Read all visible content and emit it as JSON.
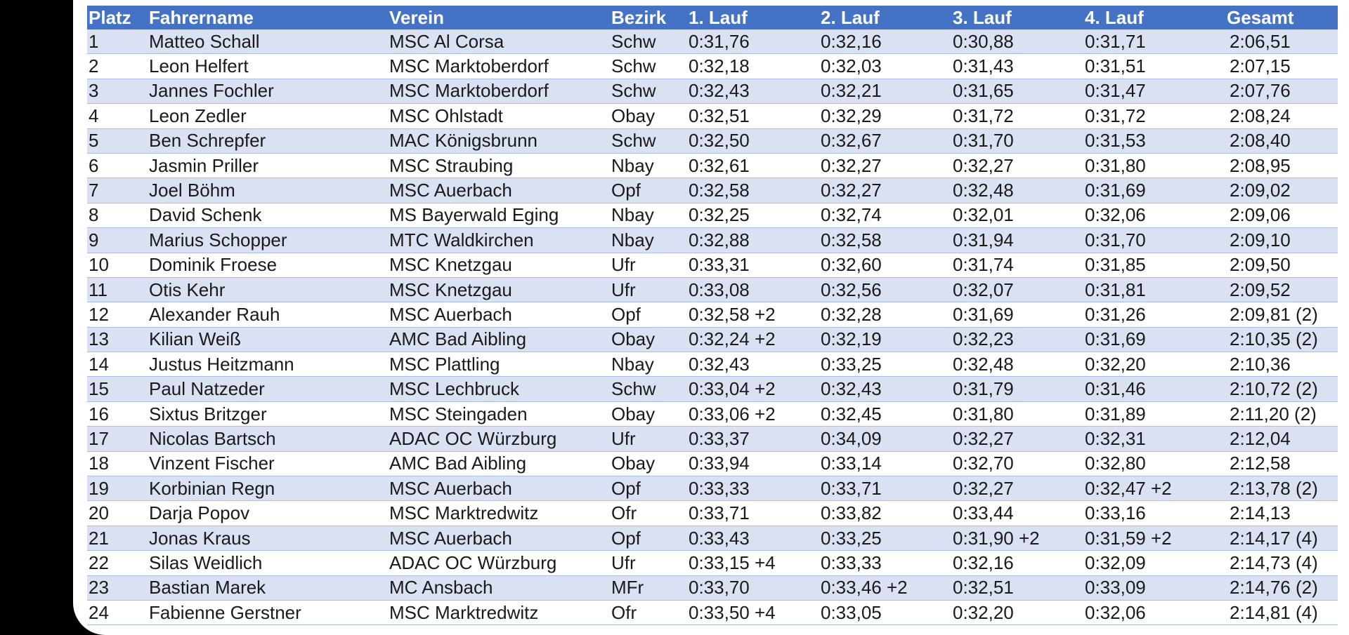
{
  "table": {
    "columns": [
      "Platz",
      "Fahrername",
      "Verein",
      "Bezirk",
      "1. Lauf",
      "2. Lauf",
      "3. Lauf",
      "4. Lauf",
      "Gesamt"
    ],
    "rows": [
      [
        "1",
        "Matteo Schall",
        "MSC Al Corsa",
        "Schw",
        "0:31,76",
        "0:32,16",
        "0:30,88",
        "0:31,71",
        "2:06,51"
      ],
      [
        "2",
        "Leon Helfert",
        "MSC Marktoberdorf",
        "Schw",
        "0:32,18",
        "0:32,03",
        "0:31,43",
        "0:31,51",
        "2:07,15"
      ],
      [
        "3",
        "Jannes Fochler",
        "MSC Marktoberdorf",
        "Schw",
        "0:32,43",
        "0:32,21",
        "0:31,65",
        "0:31,47",
        "2:07,76"
      ],
      [
        "4",
        "Leon Zedler",
        "MSC Ohlstadt",
        "Obay",
        "0:32,51",
        "0:32,29",
        "0:31,72",
        "0:31,72",
        "2:08,24"
      ],
      [
        "5",
        "Ben Schrepfer",
        "MAC Königsbrunn",
        "Schw",
        "0:32,50",
        "0:32,67",
        "0:31,70",
        "0:31,53",
        "2:08,40"
      ],
      [
        "6",
        "Jasmin Priller",
        "MSC Straubing",
        "Nbay",
        "0:32,61",
        "0:32,27",
        "0:32,27",
        "0:31,80",
        "2:08,95"
      ],
      [
        "7",
        "Joel Böhm",
        "MSC Auerbach",
        "Opf",
        "0:32,58",
        "0:32,27",
        "0:32,48",
        "0:31,69",
        "2:09,02"
      ],
      [
        "8",
        "David Schenk",
        "MS Bayerwald Eging",
        "Nbay",
        "0:32,25",
        "0:32,74",
        "0:32,01",
        "0:32,06",
        "2:09,06"
      ],
      [
        "9",
        "Marius Schopper",
        "MTC Waldkirchen",
        "Nbay",
        "0:32,88",
        "0:32,58",
        "0:31,94",
        "0:31,70",
        "2:09,10"
      ],
      [
        "10",
        "Dominik Froese",
        "MSC Knetzgau",
        "Ufr",
        "0:33,31",
        "0:32,60",
        "0:31,74",
        "0:31,85",
        "2:09,50"
      ],
      [
        "11",
        "Otis Kehr",
        "MSC Knetzgau",
        "Ufr",
        "0:33,08",
        "0:32,56",
        "0:32,07",
        "0:31,81",
        "2:09,52"
      ],
      [
        "12",
        "Alexander Rauh",
        "MSC Auerbach",
        "Opf",
        "0:32,58 +2",
        "0:32,28",
        "0:31,69",
        "0:31,26",
        "2:09,81 (2)"
      ],
      [
        "13",
        "Kilian Weiß",
        "AMC Bad Aibling",
        "Obay",
        "0:32,24 +2",
        "0:32,19",
        "0:32,23",
        "0:31,69",
        "2:10,35 (2)"
      ],
      [
        "14",
        "Justus Heitzmann",
        "MSC Plattling",
        "Nbay",
        "0:32,43",
        "0:33,25",
        "0:32,48",
        "0:32,20",
        "2:10,36"
      ],
      [
        "15",
        "Paul Natzeder",
        "MSC Lechbruck",
        "Schw",
        "0:33,04 +2",
        "0:32,43",
        "0:31,79",
        "0:31,46",
        "2:10,72 (2)"
      ],
      [
        "16",
        "Sixtus Britzger",
        "MSC Steingaden",
        "Obay",
        "0:33,06 +2",
        "0:32,45",
        "0:31,80",
        "0:31,89",
        "2:11,20 (2)"
      ],
      [
        "17",
        "Nicolas Bartsch",
        "ADAC OC Würzburg",
        "Ufr",
        "0:33,37",
        "0:34,09",
        "0:32,27",
        "0:32,31",
        "2:12,04"
      ],
      [
        "18",
        "Vinzent Fischer",
        "AMC Bad Aibling",
        "Obay",
        "0:33,94",
        "0:33,14",
        "0:32,70",
        "0:32,80",
        "2:12,58"
      ],
      [
        "19",
        "Korbinian Regn",
        "MSC Auerbach",
        "Opf",
        "0:33,33",
        "0:33,71",
        "0:32,27",
        "0:32,47 +2",
        "2:13,78 (2)"
      ],
      [
        "20",
        "Darja Popov",
        "MSC Marktredwitz",
        "Ofr",
        "0:33,71",
        "0:33,82",
        "0:33,44",
        "0:33,16",
        "2:14,13"
      ],
      [
        "21",
        "Jonas Kraus",
        "MSC Auerbach",
        "Opf",
        "0:33,43",
        "0:33,25",
        "0:31,90 +2",
        "0:31,59 +2",
        "2:14,17 (4)"
      ],
      [
        "22",
        "Silas Weidlich",
        "ADAC OC Würzburg",
        "Ufr",
        "0:33,15 +4",
        "0:33,33",
        "0:32,16",
        "0:32,09",
        "2:14,73 (4)"
      ],
      [
        "23",
        "Bastian Marek",
        "MC Ansbach",
        "MFr",
        "0:33,70",
        "0:33,46 +2",
        "0:32,51",
        "0:33,09",
        "2:14,76 (2)"
      ],
      [
        "24",
        "Fabienne Gerstner",
        "MSC Marktredwitz",
        "Ofr",
        "0:33,50 +4",
        "0:33,05",
        "0:32,20",
        "0:32,06",
        "2:14,81 (4)"
      ]
    ]
  },
  "colors": {
    "header_bg": "#4472c4",
    "header_text": "#ffffff",
    "band_row": "#d9e1f2",
    "plain_row": "#ffffff",
    "row_border": "#a9bde6",
    "frame": "#000000"
  }
}
